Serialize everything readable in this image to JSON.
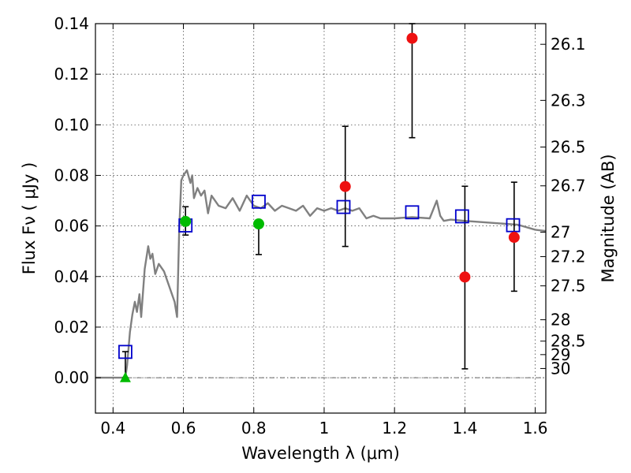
{
  "chart_data": {
    "type": "scatter",
    "title": "",
    "xlabel": "Wavelength  λ (μm)",
    "ylabel": "Flux  Fν  ( μJy )",
    "y2label": "Magnitude (AB)",
    "xlim": [
      0.35,
      1.63
    ],
    "ylim": [
      -0.014,
      0.14
    ],
    "grid": true,
    "xticks": [
      "0.4",
      "0.6",
      "0.8",
      "1",
      "1.2",
      "1.4",
      "1.6"
    ],
    "xtick_values": [
      0.4,
      0.6,
      0.8,
      1.0,
      1.2,
      1.4,
      1.6
    ],
    "yticks": [
      "0.00",
      "0.02",
      "0.04",
      "0.06",
      "0.08",
      "0.10",
      "0.12",
      "0.14"
    ],
    "ytick_values": [
      0.0,
      0.02,
      0.04,
      0.06,
      0.08,
      0.1,
      0.12,
      0.14
    ],
    "y2ticks": [
      "26.1",
      "26.3",
      "26.5",
      "26.7",
      "27",
      "27.2",
      "27.5",
      "28",
      "28.5",
      "29",
      "30"
    ],
    "y2tick_values": [
      26.1,
      26.3,
      26.5,
      26.7,
      27.0,
      27.2,
      27.5,
      28.0,
      28.5,
      29.0,
      30.0
    ],
    "colors": {
      "model": "#808080",
      "green": "#00bb00",
      "red": "#ee1111",
      "blue": "#0000cc",
      "error": "#000000"
    },
    "series": [
      {
        "marker": "blue-open-square",
        "x": [
          0.435,
          0.606,
          0.814,
          1.055,
          1.25,
          1.392,
          1.537
        ],
        "y": [
          0.0102,
          0.0602,
          0.0696,
          0.0675,
          0.0654,
          0.0638,
          0.0603
        ]
      },
      {
        "marker": "green-circle",
        "x": [
          0.606,
          0.814
        ],
        "y": [
          0.0618,
          0.0608
        ],
        "yerr_low": [
          0.0564,
          0.0487
        ],
        "yerr_high": [
          0.0676,
          0.0608
        ]
      },
      {
        "marker": "green-triangle",
        "x": [
          0.435
        ],
        "y": [
          0.0001
        ],
        "yerr_low": [
          0.0
        ],
        "yerr_high": [
          0.0103
        ]
      },
      {
        "marker": "red-circle",
        "x": [
          1.06,
          1.25,
          1.4,
          1.54
        ],
        "y": [
          0.0756,
          0.1342,
          0.0398,
          0.0555
        ],
        "yerr_low": [
          0.0519,
          0.0949,
          0.0035,
          0.0342
        ],
        "yerr_high": [
          0.0994,
          0.14,
          0.0757,
          0.0773
        ]
      }
    ],
    "model_spectrum": {
      "x": [
        0.35,
        0.42,
        0.435,
        0.44,
        0.448,
        0.455,
        0.462,
        0.468,
        0.475,
        0.48,
        0.49,
        0.5,
        0.506,
        0.512,
        0.52,
        0.53,
        0.545,
        0.56,
        0.575,
        0.582,
        0.588,
        0.594,
        0.6,
        0.61,
        0.62,
        0.625,
        0.63,
        0.64,
        0.65,
        0.66,
        0.67,
        0.68,
        0.69,
        0.7,
        0.72,
        0.74,
        0.76,
        0.78,
        0.8,
        0.82,
        0.84,
        0.86,
        0.88,
        0.9,
        0.92,
        0.94,
        0.96,
        0.98,
        1.0,
        1.02,
        1.04,
        1.06,
        1.08,
        1.1,
        1.12,
        1.14,
        1.16,
        1.2,
        1.25,
        1.3,
        1.32,
        1.33,
        1.34,
        1.36,
        1.4,
        1.45,
        1.5,
        1.55,
        1.6,
        1.63
      ],
      "y": [
        0.0,
        0.0,
        0.0,
        0.005,
        0.018,
        0.025,
        0.03,
        0.026,
        0.033,
        0.024,
        0.043,
        0.052,
        0.047,
        0.049,
        0.041,
        0.045,
        0.042,
        0.036,
        0.03,
        0.024,
        0.058,
        0.078,
        0.08,
        0.082,
        0.077,
        0.08,
        0.071,
        0.075,
        0.072,
        0.074,
        0.065,
        0.072,
        0.07,
        0.068,
        0.067,
        0.071,
        0.066,
        0.072,
        0.068,
        0.067,
        0.069,
        0.066,
        0.068,
        0.067,
        0.066,
        0.068,
        0.064,
        0.067,
        0.066,
        0.067,
        0.066,
        0.067,
        0.066,
        0.067,
        0.063,
        0.064,
        0.063,
        0.063,
        0.0635,
        0.063,
        0.07,
        0.064,
        0.062,
        0.0625,
        0.062,
        0.0615,
        0.061,
        0.0605,
        0.0585,
        0.058
      ]
    }
  }
}
